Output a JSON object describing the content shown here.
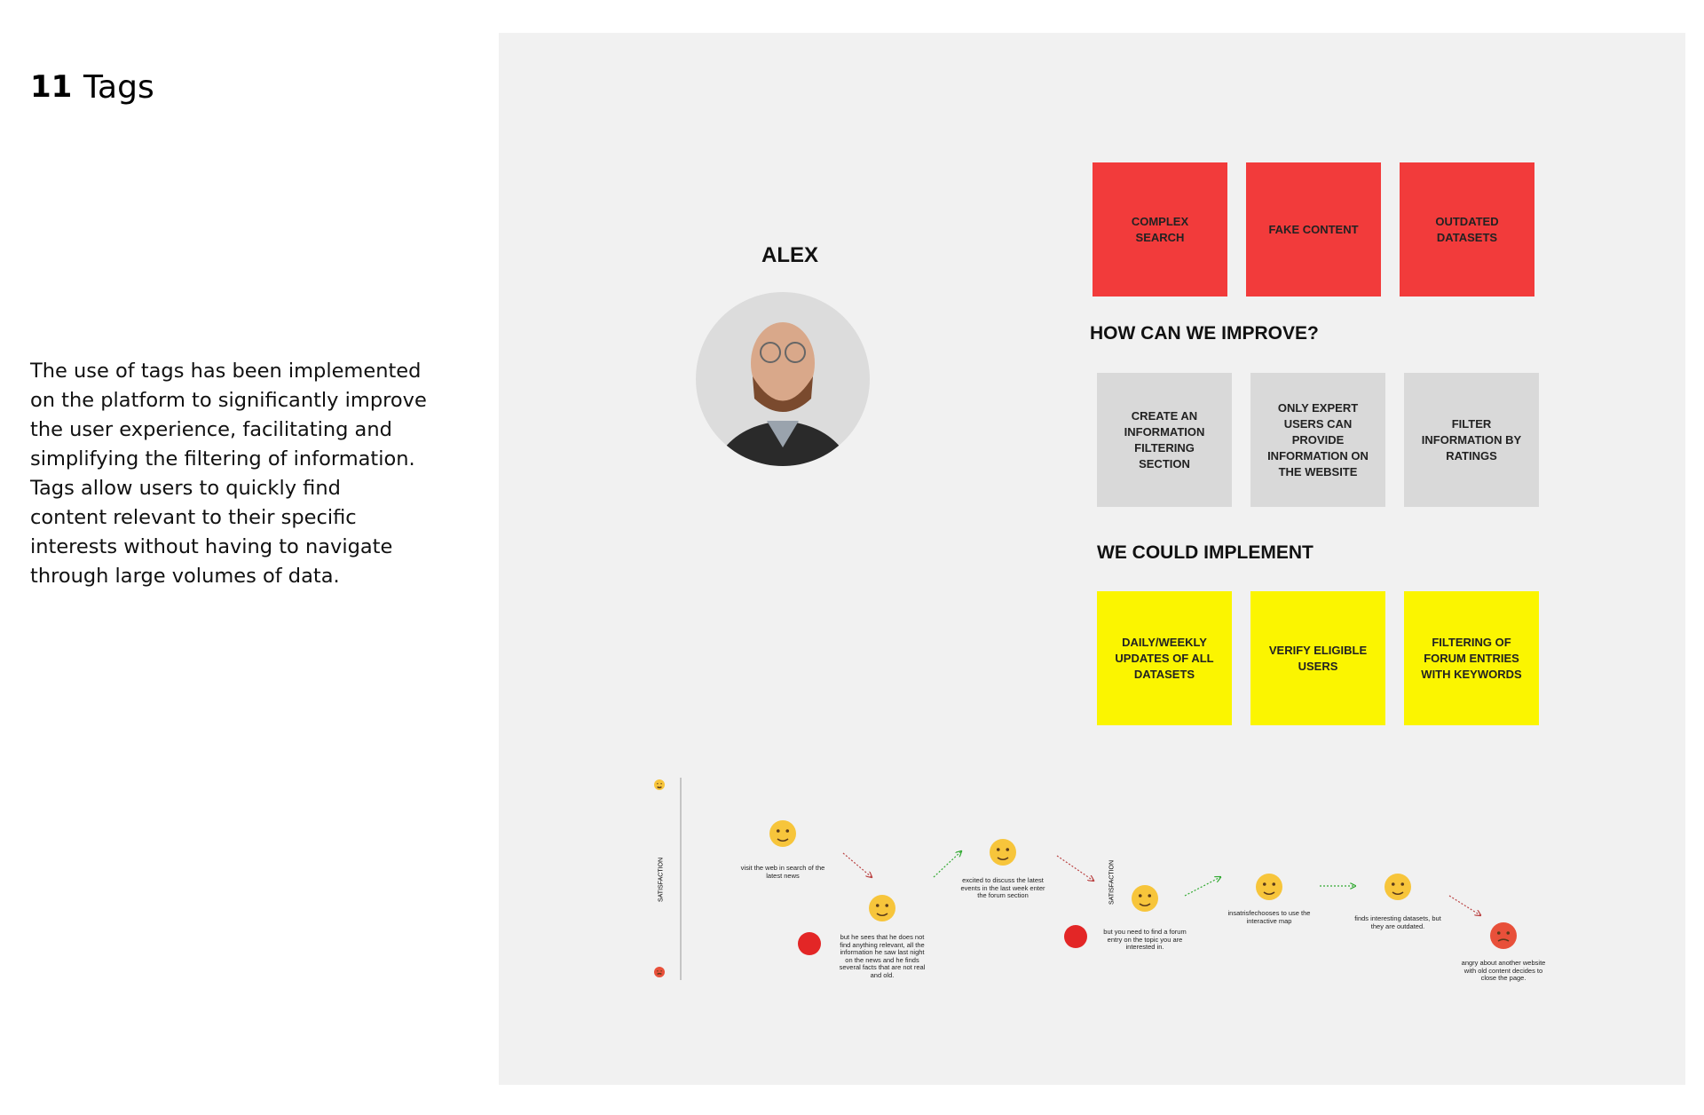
{
  "header": {
    "number": "11",
    "title": "Tags"
  },
  "description": [
    "The use of tags has been implemented",
    "on the platform to significantly improve",
    "the user experience, facilitating and",
    "simplifying the filtering of information.",
    "Tags allow users to quickly find",
    "content relevant to their specific",
    "interests without having to navigate",
    "through large volumes of data."
  ],
  "persona": {
    "name": "ALEX"
  },
  "problems": [
    "COMPLEX SEARCH",
    "FAKE CONTENT",
    "OUTDATED DATASETS"
  ],
  "improve": {
    "title": "HOW CAN WE IMPROVE?",
    "items": [
      "CREATE AN INFORMATION FILTERING SECTION",
      "ONLY EXPERT USERS CAN PROVIDE INFORMATION ON THE WEBSITE",
      "FILTER INFORMATION BY RATINGS"
    ]
  },
  "implement": {
    "title": "WE COULD IMPLEMENT",
    "items": [
      "DAILY/WEEKLY UPDATES OF ALL DATASETS",
      "VERIFY ELIGIBLE USERS",
      "FILTERING OF FORUM ENTRIES WITH KEYWORDS"
    ]
  },
  "journey": {
    "axis_label": "SATISFACTION",
    "steps": [
      "visit the web in search of the latest news",
      "but he sees that he does not find anything relevant, all the information he saw last night on the news and he finds several facts that are not real and old.",
      "excited to discuss the latest events in the last week enter the forum section",
      "but you need to find a forum entry on the topic you are interested in.",
      "insatrisfechooses to use the interactive map",
      "finds interesting datasets, but they are outdated.",
      "angry about another website with old content decides to close the page."
    ]
  }
}
